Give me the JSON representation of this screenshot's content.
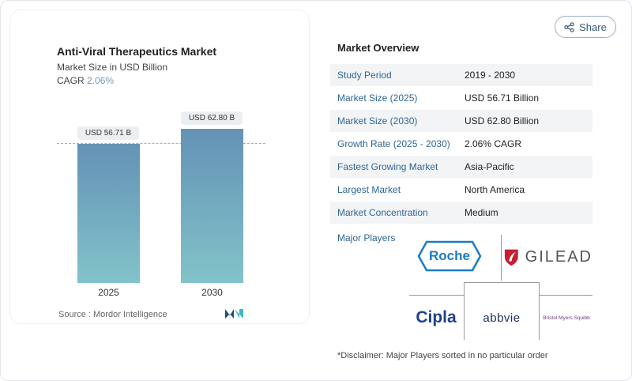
{
  "share_label": "Share",
  "chart_data": {
    "type": "bar",
    "title": "Anti-Viral Therapeutics Market",
    "subtitle": "Market Size in USD Billion",
    "cagr_label": "CAGR",
    "cagr_value": "2.06%",
    "categories": [
      "2025",
      "2030"
    ],
    "values": [
      56.71,
      62.8
    ],
    "data_labels": [
      "USD 56.71 B",
      "USD 62.80 B"
    ],
    "ylim": [
      0,
      62.8
    ],
    "source": "Source :  Mordor Intelligence",
    "colors": {
      "top": "#6492b6",
      "bottom": "#82c3c9"
    }
  },
  "overview": {
    "title": "Market Overview",
    "rows": [
      {
        "label": "Study Period",
        "value": "2019 - 2030"
      },
      {
        "label": "Market Size (2025)",
        "value": "USD 56.71 Billion"
      },
      {
        "label": "Market Size (2030)",
        "value": "USD 62.80 Billion"
      },
      {
        "label": "Growth Rate (2025 - 2030)",
        "value": "2.06% CAGR"
      },
      {
        "label": "Fastest Growing Market",
        "value": "Asia-Pacific"
      },
      {
        "label": "Largest Market",
        "value": "North America"
      },
      {
        "label": "Market Concentration",
        "value": "Medium"
      }
    ],
    "major_players_label": "Major Players",
    "players": [
      "Roche",
      "GILEAD",
      "Cipla",
      "abbvie",
      "Bristol Myers Squibb"
    ],
    "disclaimer": "*Disclaimer: Major Players sorted in no particular order"
  }
}
